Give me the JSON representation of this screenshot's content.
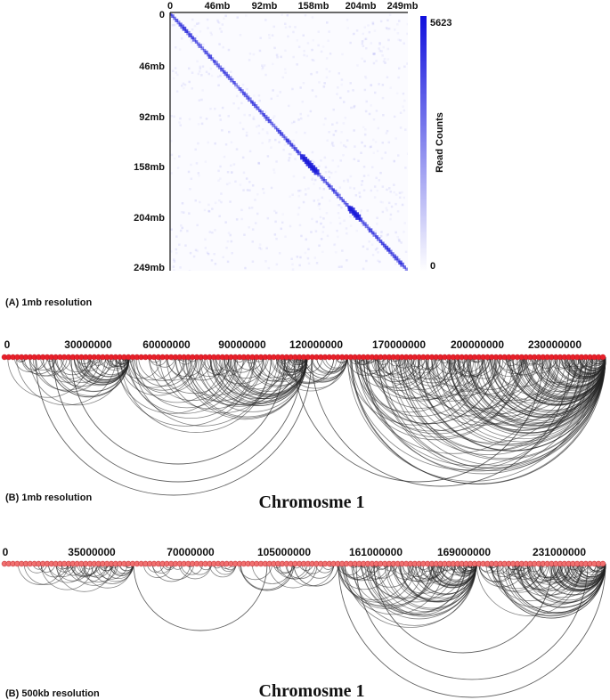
{
  "chart_data": [
    {
      "type": "heatmap",
      "xticks": [
        "0",
        "46mb",
        "92mb",
        "158mb",
        "204mb",
        "249mb"
      ],
      "yticks": [
        "0",
        "46mb",
        "92mb",
        "158mb",
        "204mb",
        "249mb"
      ],
      "colorbar": {
        "label": "Read Counts",
        "max": "5623",
        "min": "0",
        "color_high": "#1010dd",
        "color_low": "#ffffff"
      },
      "caption": "(A) 1mb resolution"
    },
    {
      "type": "arc",
      "xticks": [
        "0",
        "30000000",
        "60000000",
        "90000000",
        "120000000",
        "170000000",
        "200000000",
        "230000000"
      ],
      "caption": "(B) 1mb resolution",
      "title": "Chromosme 1",
      "node_color": "#e8202a",
      "arc_color": "#222222"
    },
    {
      "type": "arc",
      "xticks": [
        "0",
        "35000000",
        "70000000",
        "105000000",
        "161000000",
        "169000000",
        "231000000"
      ],
      "caption": "(B) 500kb resolution",
      "title": "Chromosme 1",
      "node_color": "#f07070",
      "arc_color": "#222222"
    }
  ]
}
